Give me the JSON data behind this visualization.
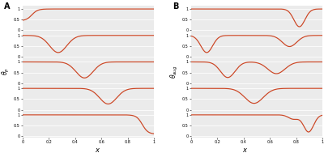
{
  "panel_A_label": "A",
  "panel_B_label": "B",
  "ylabel_A": "θ_p",
  "ylabel_B": "θ_aug",
  "xlabel": "x",
  "line_color": "#cc4422",
  "bg_color": "#ebebeb",
  "ytick_labels": [
    "0",
    "0.5",
    "1"
  ],
  "yticks": [
    0,
    0.5,
    1
  ],
  "xtick_labels": [
    "0",
    "0.2",
    "0.4",
    "0.6",
    "0.8",
    "1"
  ],
  "xticks": [
    0,
    0.2,
    0.4,
    0.6,
    0.8,
    1.0
  ],
  "xlim": [
    0,
    1
  ],
  "ylim": [
    -0.05,
    1.15
  ],
  "n_rows": 5
}
